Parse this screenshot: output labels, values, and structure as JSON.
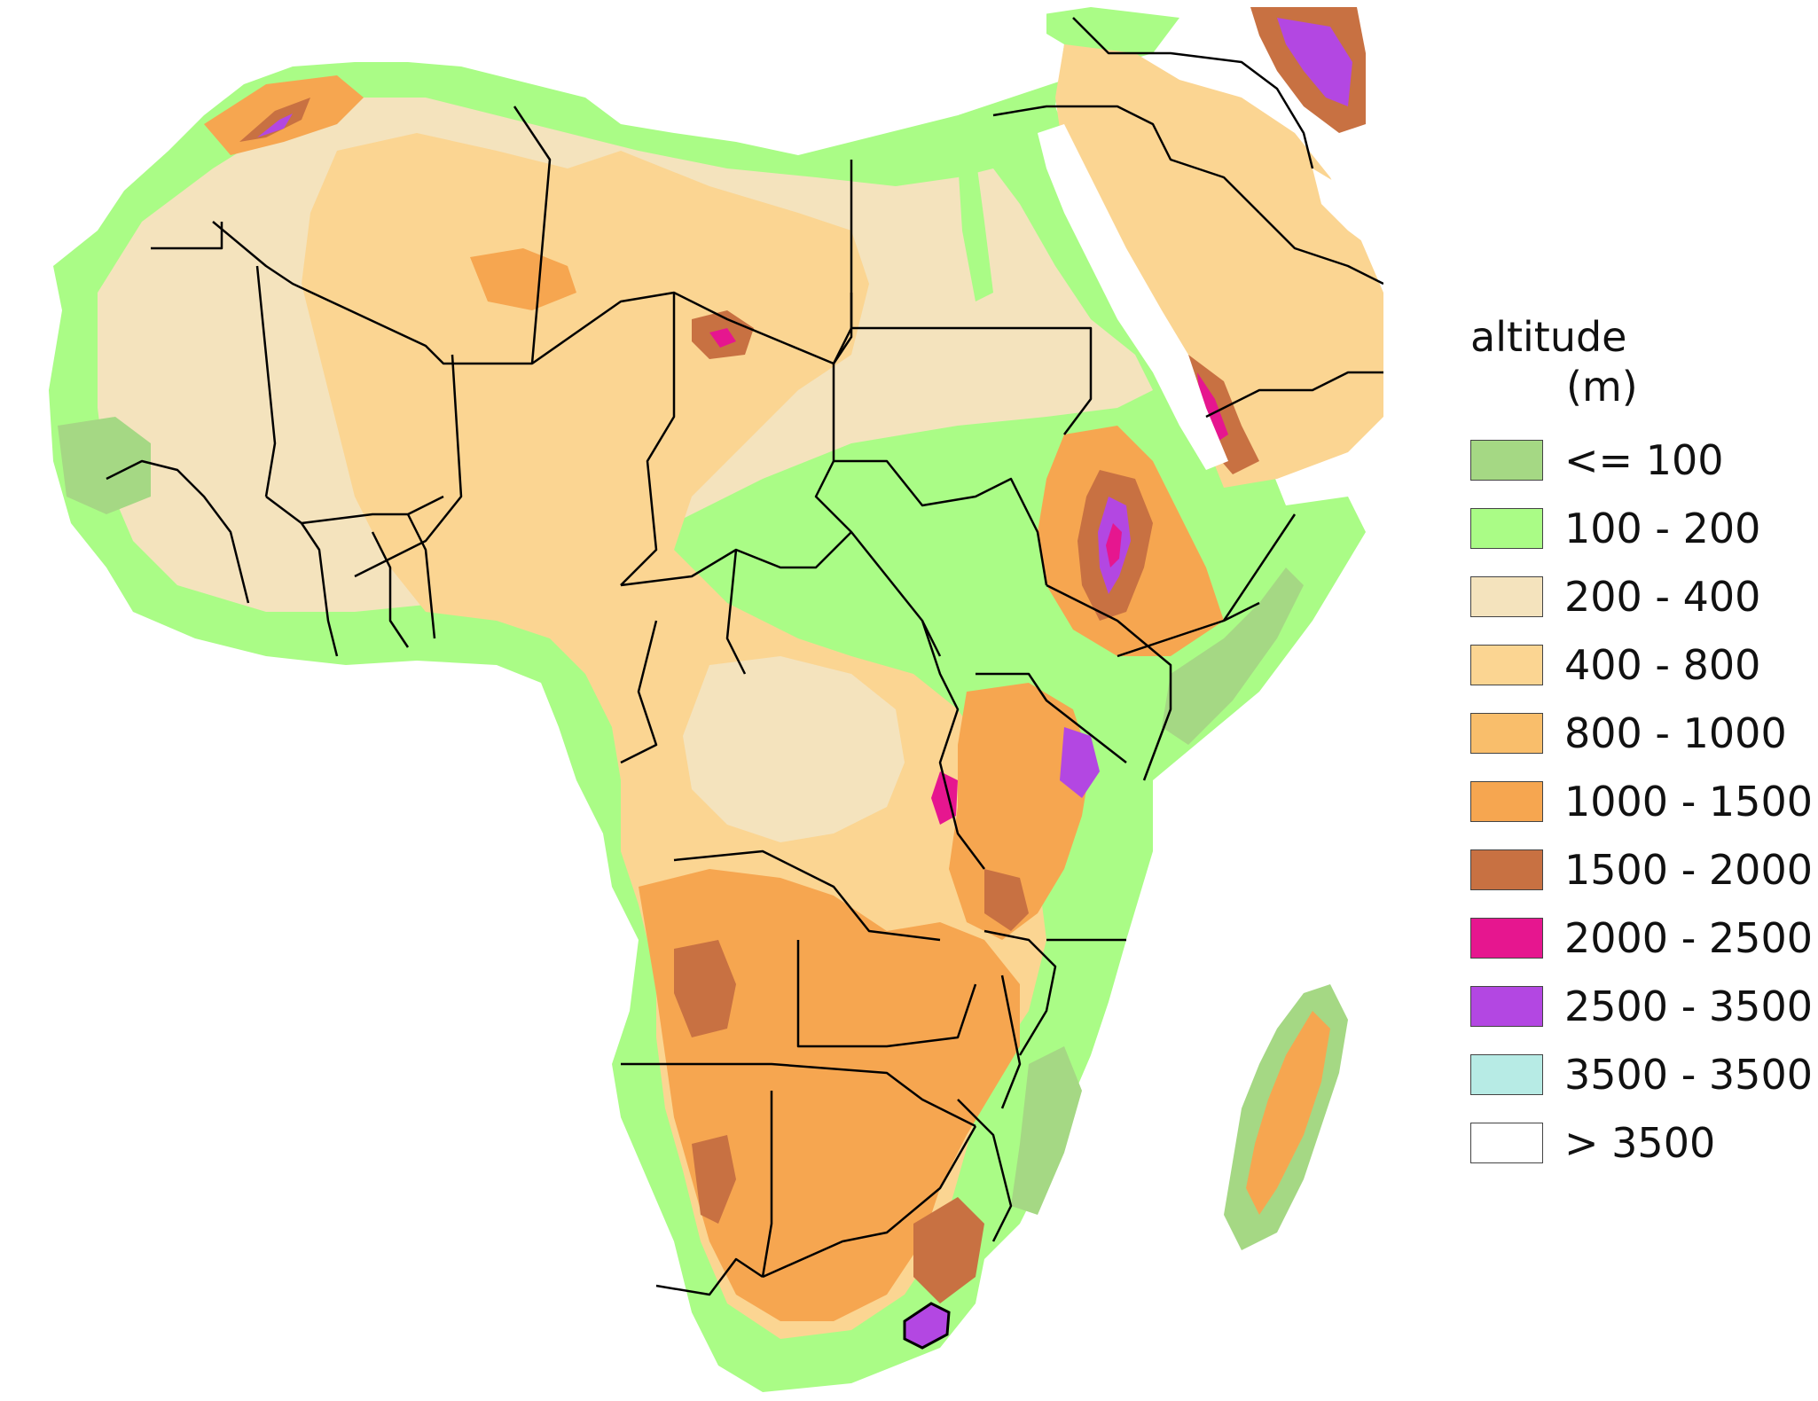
{
  "legend": {
    "title": "altitude",
    "unit": "(m)",
    "items": [
      {
        "label": "<= 100",
        "color": "#a5d884"
      },
      {
        "label": "100 - 200",
        "color": "#aafc86"
      },
      {
        "label": "200 - 400",
        "color": "#f4e3bd"
      },
      {
        "label": "400 - 800",
        "color": "#fbd592"
      },
      {
        "label": "800 - 1000",
        "color": "#f9be6b"
      },
      {
        "label": "1000 - 1500",
        "color": "#f6a650"
      },
      {
        "label": "1500 - 2000",
        "color": "#c87142"
      },
      {
        "label": "2000 - 2500",
        "color": "#e6168f"
      },
      {
        "label": "2500 - 3500",
        "color": "#b347e2"
      },
      {
        "label": "3500 - 3500",
        "color": "#b7ebe5"
      },
      {
        "label": "> 3500",
        "color": "#ffffff"
      }
    ]
  },
  "map": {
    "subject": "Africa elevation map",
    "background": "#ffffff",
    "border_color": "#000000"
  }
}
